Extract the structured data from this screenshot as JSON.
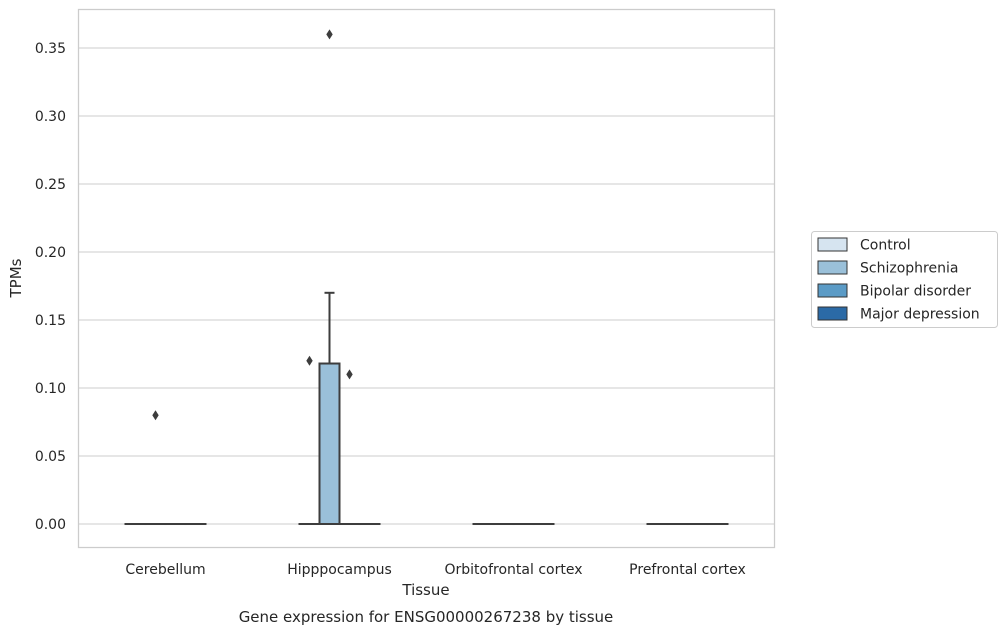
{
  "chart_data": {
    "type": "box",
    "title": "",
    "caption": "Gene expression for ENSG00000267238 by tissue",
    "xlabel": "Tissue",
    "ylabel": "TPMs",
    "ylim": [
      -0.018,
      0.378
    ],
    "yticks": [
      0.0,
      0.05,
      0.1,
      0.15,
      0.2,
      0.25,
      0.3,
      0.35
    ],
    "ytick_labels": [
      "0.00",
      "0.05",
      "0.10",
      "0.15",
      "0.20",
      "0.25",
      "0.30",
      "0.35"
    ],
    "grid": true,
    "legend_position": "right",
    "categories": [
      "Cerebellum",
      "Hipppocampus",
      "Orbitofrontal cortex",
      "Prefrontal cortex"
    ],
    "series": [
      {
        "name": "Control",
        "color": "#d6e4f0",
        "boxes": [
          {
            "category": "Cerebellum",
            "q1": 0,
            "median": 0,
            "q3": 0,
            "whisker_low": 0,
            "whisker_high": 0,
            "outliers": []
          },
          {
            "category": "Hipppocampus",
            "q1": 0,
            "median": 0,
            "q3": 0,
            "whisker_low": 0,
            "whisker_high": 0,
            "outliers": []
          },
          {
            "category": "Orbitofrontal cortex",
            "q1": 0,
            "median": 0,
            "q3": 0,
            "whisker_low": 0,
            "whisker_high": 0,
            "outliers": []
          },
          {
            "category": "Prefrontal cortex",
            "q1": 0,
            "median": 0,
            "q3": 0,
            "whisker_low": 0,
            "whisker_high": 0,
            "outliers": []
          }
        ]
      },
      {
        "name": "Schizophrenia",
        "color": "#9ac0d9",
        "boxes": [
          {
            "category": "Cerebellum",
            "q1": 0,
            "median": 0,
            "q3": 0,
            "whisker_low": 0,
            "whisker_high": 0,
            "outliers": [
              0.08
            ]
          },
          {
            "category": "Hipppocampus",
            "q1": 0,
            "median": 0,
            "q3": 0.118,
            "whisker_low": 0,
            "whisker_high": 0.17,
            "outliers": [
              0.36
            ]
          },
          {
            "category": "Orbitofrontal cortex",
            "q1": 0,
            "median": 0,
            "q3": 0,
            "whisker_low": 0,
            "whisker_high": 0,
            "outliers": []
          },
          {
            "category": "Prefrontal cortex",
            "q1": 0,
            "median": 0,
            "q3": 0,
            "whisker_low": 0,
            "whisker_high": 0,
            "outliers": []
          }
        ]
      },
      {
        "name": "Bipolar disorder",
        "color": "#5b9bc6",
        "boxes": [
          {
            "category": "Cerebellum",
            "q1": 0,
            "median": 0,
            "q3": 0,
            "whisker_low": 0,
            "whisker_high": 0,
            "outliers": []
          },
          {
            "category": "Hipppocampus",
            "q1": 0,
            "median": 0,
            "q3": 0,
            "whisker_low": 0,
            "whisker_high": 0,
            "outliers": [
              0.11
            ]
          },
          {
            "category": "Orbitofrontal cortex",
            "q1": 0,
            "median": 0,
            "q3": 0,
            "whisker_low": 0,
            "whisker_high": 0,
            "outliers": []
          },
          {
            "category": "Prefrontal cortex",
            "q1": 0,
            "median": 0,
            "q3": 0,
            "whisker_low": 0,
            "whisker_high": 0,
            "outliers": []
          }
        ]
      },
      {
        "name": "Major depression",
        "color": "#2b6aa6",
        "boxes": [
          {
            "category": "Cerebellum",
            "q1": 0,
            "median": 0,
            "q3": 0,
            "whisker_low": 0,
            "whisker_high": 0,
            "outliers": []
          },
          {
            "category": "Hipppocampus",
            "q1": 0,
            "median": 0,
            "q3": 0,
            "whisker_low": 0,
            "whisker_high": 0,
            "outliers": []
          },
          {
            "category": "Orbitofrontal cortex",
            "q1": 0,
            "median": 0,
            "q3": 0,
            "whisker_low": 0,
            "whisker_high": 0,
            "outliers": []
          },
          {
            "category": "Prefrontal cortex",
            "q1": 0,
            "median": 0,
            "q3": 0,
            "whisker_low": 0,
            "whisker_high": 0,
            "outliers": []
          }
        ]
      }
    ],
    "extra_outliers": [
      {
        "category": "Hipppocampus",
        "value": 0.12,
        "series": "Control"
      }
    ]
  }
}
